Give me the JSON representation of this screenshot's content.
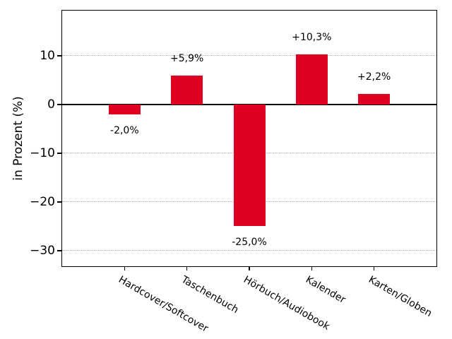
{
  "chart_data": {
    "type": "bar",
    "title": "",
    "xlabel": "",
    "ylabel": "in Prozent (%)",
    "categories": [
      "Hardcover/Softcover",
      "Taschenbuch",
      "Hörbuch/Audiobook",
      "Kalender",
      "Karten/Globen"
    ],
    "values": [
      -2.0,
      5.9,
      -25.0,
      10.3,
      2.2
    ],
    "bar_labels": [
      "-2,0%",
      "+5,9%",
      "-25,0%",
      "+10,3%",
      "+2,2%"
    ],
    "bar_color": "#e00020",
    "yticks": [
      10,
      0,
      -10,
      -20,
      -30
    ],
    "ylim": [
      -33.2,
      19.3
    ],
    "grid": {
      "style": "dotted",
      "color": "#ababab",
      "orientation": "horizontal",
      "zero_line": "solid-black"
    },
    "legend_position": "none",
    "background_color": "#ffffff"
  }
}
